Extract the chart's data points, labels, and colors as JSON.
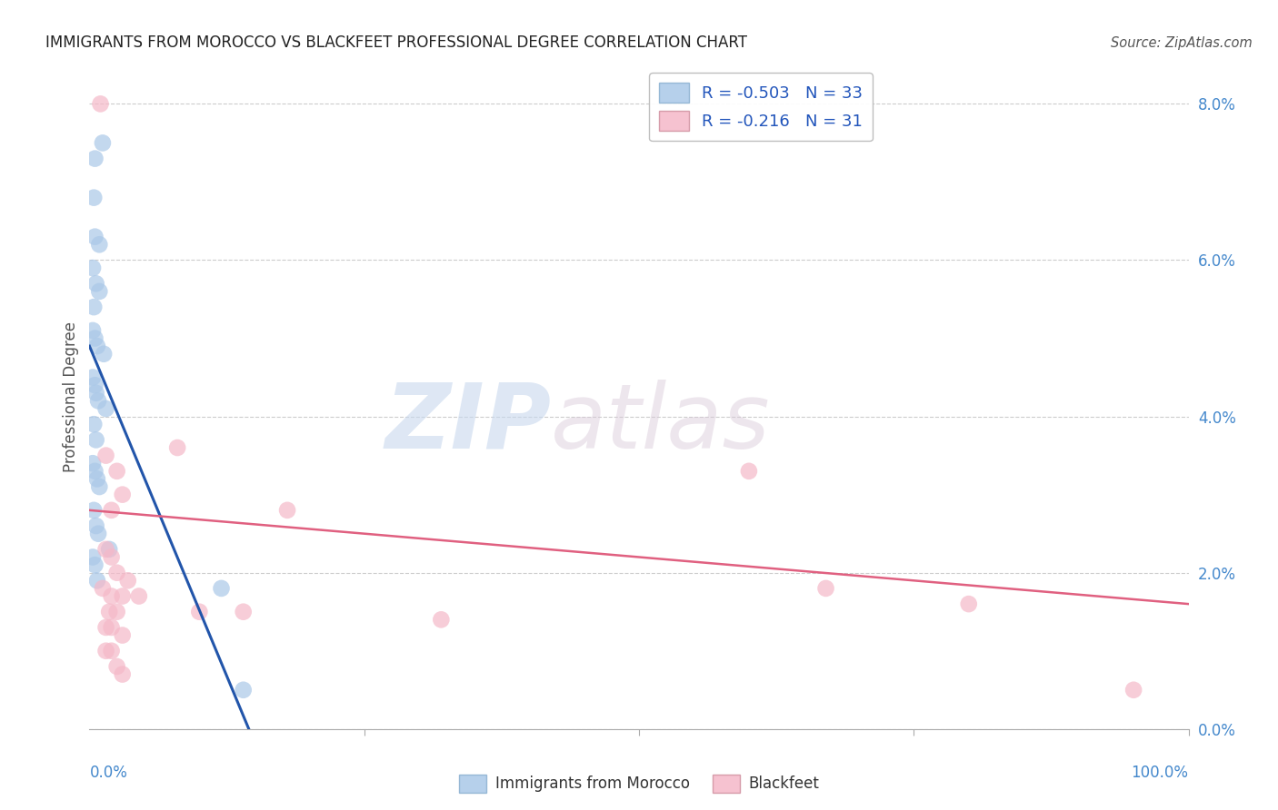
{
  "title": "IMMIGRANTS FROM MOROCCO VS BLACKFEET PROFESSIONAL DEGREE CORRELATION CHART",
  "source": "Source: ZipAtlas.com",
  "ylabel": "Professional Degree",
  "right_ytick_vals": [
    0.0,
    2.0,
    4.0,
    6.0,
    8.0
  ],
  "xlim": [
    0,
    100
  ],
  "ylim": [
    0.0,
    8.5
  ],
  "legend_R1": "-0.503",
  "legend_N1": "33",
  "legend_R2": "-0.216",
  "legend_N2": "31",
  "blue_color": "#aac8e8",
  "pink_color": "#f5b8c8",
  "blue_line_color": "#2255aa",
  "pink_line_color": "#e06080",
  "blue_scatter": [
    [
      0.5,
      7.3
    ],
    [
      1.2,
      7.5
    ],
    [
      0.4,
      6.8
    ],
    [
      0.5,
      6.3
    ],
    [
      0.9,
      6.2
    ],
    [
      0.3,
      5.9
    ],
    [
      0.6,
      5.7
    ],
    [
      0.9,
      5.6
    ],
    [
      0.4,
      5.4
    ],
    [
      0.3,
      5.1
    ],
    [
      0.5,
      5.0
    ],
    [
      0.7,
      4.9
    ],
    [
      1.3,
      4.8
    ],
    [
      0.3,
      4.5
    ],
    [
      0.5,
      4.4
    ],
    [
      0.6,
      4.3
    ],
    [
      0.8,
      4.2
    ],
    [
      1.5,
      4.1
    ],
    [
      0.4,
      3.9
    ],
    [
      0.6,
      3.7
    ],
    [
      0.3,
      3.4
    ],
    [
      0.5,
      3.3
    ],
    [
      0.7,
      3.2
    ],
    [
      0.9,
      3.1
    ],
    [
      0.4,
      2.8
    ],
    [
      0.6,
      2.6
    ],
    [
      0.8,
      2.5
    ],
    [
      0.3,
      2.2
    ],
    [
      0.5,
      2.1
    ],
    [
      0.7,
      1.9
    ],
    [
      1.8,
      2.3
    ],
    [
      12.0,
      1.8
    ],
    [
      14.0,
      0.5
    ]
  ],
  "pink_scatter": [
    [
      1.0,
      8.0
    ],
    [
      1.5,
      3.5
    ],
    [
      2.5,
      3.3
    ],
    [
      8.0,
      3.6
    ],
    [
      2.0,
      2.8
    ],
    [
      3.0,
      3.0
    ],
    [
      18.0,
      2.8
    ],
    [
      1.5,
      2.3
    ],
    [
      2.0,
      2.2
    ],
    [
      2.5,
      2.0
    ],
    [
      3.5,
      1.9
    ],
    [
      1.2,
      1.8
    ],
    [
      2.0,
      1.7
    ],
    [
      3.0,
      1.7
    ],
    [
      1.8,
      1.5
    ],
    [
      2.5,
      1.5
    ],
    [
      4.5,
      1.7
    ],
    [
      1.5,
      1.3
    ],
    [
      2.0,
      1.3
    ],
    [
      3.0,
      1.2
    ],
    [
      1.5,
      1.0
    ],
    [
      2.0,
      1.0
    ],
    [
      10.0,
      1.5
    ],
    [
      14.0,
      1.5
    ],
    [
      32.0,
      1.4
    ],
    [
      2.5,
      0.8
    ],
    [
      3.0,
      0.7
    ],
    [
      60.0,
      3.3
    ],
    [
      67.0,
      1.8
    ],
    [
      80.0,
      1.6
    ],
    [
      95.0,
      0.5
    ]
  ],
  "blue_line_x": [
    0.0,
    14.5
  ],
  "blue_line_y": [
    4.9,
    0.0
  ],
  "pink_line_x": [
    0.0,
    100.0
  ],
  "pink_line_y": [
    2.8,
    1.6
  ],
  "watermark1": "ZIP",
  "watermark2": "atlas",
  "background_color": "#ffffff",
  "grid_color": "#cccccc"
}
